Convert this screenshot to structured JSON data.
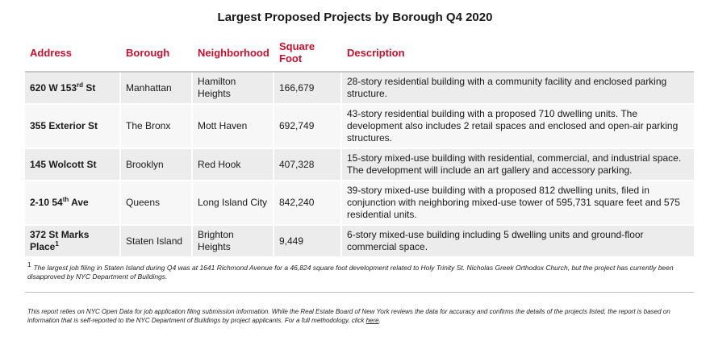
{
  "title": "Largest Proposed Projects by Borough Q4 2020",
  "table": {
    "headers": [
      "Address",
      "Borough",
      "Neighborhood",
      "Square Foot",
      "Description"
    ],
    "rows": [
      {
        "address": "620 W 153",
        "address_sup": "rd",
        "address_suffix": " St",
        "borough": "Manhattan",
        "neighborhood": "Hamilton Heights",
        "square_foot": "166,679",
        "description": "28-story residential building with a community facility and enclosed parking structure."
      },
      {
        "address": "355 Exterior St",
        "address_sup": "",
        "address_suffix": "",
        "borough": "The Bronx",
        "neighborhood": "Mott Haven",
        "square_foot": "692,749",
        "description": "43-story residential building with a proposed 710 dwelling units. The development also includes 2 retail spaces and enclosed and open-air parking structures."
      },
      {
        "address": "145 Wolcott St",
        "address_sup": "",
        "address_suffix": "",
        "borough": "Brooklyn",
        "neighborhood": "Red Hook",
        "square_foot": "407,328",
        "description": "15-story mixed-use building with residential, commercial, and industrial space. The development will include an art gallery and accessory parking."
      },
      {
        "address": "2-10 54",
        "address_sup": "th",
        "address_suffix": " Ave",
        "borough": "Queens",
        "neighborhood": "Long Island City",
        "square_foot": "842,240",
        "description": "39-story mixed-use building with a proposed 812 dwelling units, filed in conjunction with neighboring mixed-use tower of 595,731 square feet and 575 residential units."
      },
      {
        "address": "372 St Marks Place",
        "address_sup": "1",
        "address_suffix": "",
        "borough": "Staten Island",
        "neighborhood": "Brighton Heights",
        "square_foot": "9,449",
        "description": "6-story mixed-use building including 5 dwelling units and ground-floor commercial space."
      }
    ]
  },
  "footnote": {
    "marker": "1",
    "text": "The largest job filing in Staten Island during Q4 was at 1641 Richmond Avenue for a 46,824 square foot development related to Holy Trinity St. Nicholas Greek Orthodox Church, but the project has currently been disapproved by NYC Department of Buildings."
  },
  "disclaimer": {
    "text": "This report relies on NYC Open Data for job application filing submission information. While the Real Estate Board of New York reviews the data for accuracy and confirms the details of the projects listed, the report is based on information that is self-reported to the NYC Department of Buildings by project applicants. For a full methodology, click ",
    "link_label": "here",
    "end": "."
  },
  "colors": {
    "header_text": "#c8102e",
    "row_shade_dark": "#ececec",
    "row_shade_light": "#f7f7f7"
  }
}
